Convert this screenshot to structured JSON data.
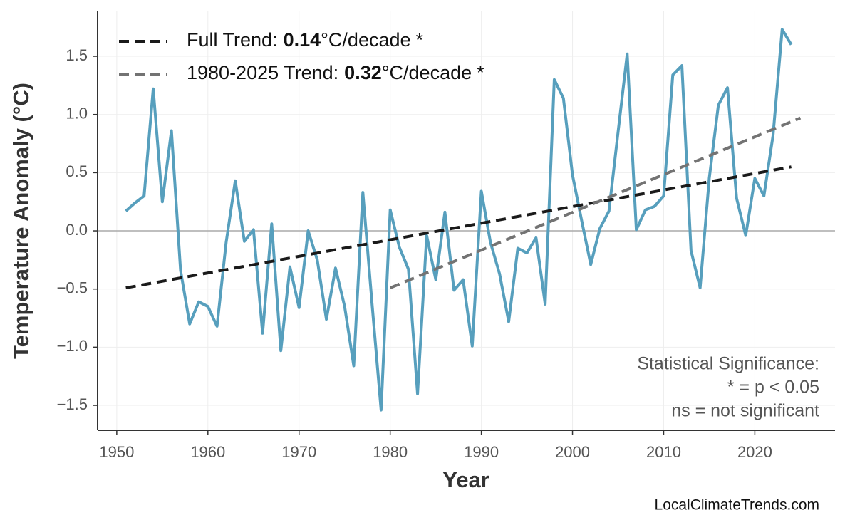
{
  "chart_data": {
    "type": "line",
    "xlabel": "Year",
    "ylabel": "Temperature Anomaly (°C)",
    "xlim": [
      1947.9,
      2028.8
    ],
    "ylim": [
      -1.714,
      1.892
    ],
    "xticks": [
      1950,
      1960,
      1970,
      1980,
      1990,
      2000,
      2010,
      2020
    ],
    "yticks": [
      {
        "value": -1.5,
        "label": "−1.5"
      },
      {
        "value": -1.0,
        "label": "−1.0"
      },
      {
        "value": -0.5,
        "label": "−0.5"
      },
      {
        "value": 0,
        "label": "0.0"
      },
      0.5,
      {
        "value": 1.0,
        "label": "1.0"
      },
      1.5
    ],
    "grid": true,
    "zero_line": true,
    "series": [
      {
        "color": "#579fbd",
        "x": [
          1951,
          1952,
          1953,
          1954,
          1955,
          1956,
          1957,
          1958,
          1959,
          1960,
          1961,
          1962,
          1963,
          1964,
          1965,
          1966,
          1967,
          1968,
          1969,
          1970,
          1971,
          1972,
          1973,
          1974,
          1975,
          1976,
          1977,
          1978,
          1979,
          1980,
          1981,
          1982,
          1983,
          1984,
          1985,
          1986,
          1987,
          1988,
          1989,
          1990,
          1991,
          1992,
          1993,
          1994,
          1995,
          1996,
          1997,
          1998,
          1999,
          2000,
          2001,
          2002,
          2003,
          2004,
          2005,
          2006,
          2007,
          2008,
          2009,
          2010,
          2011,
          2012,
          2013,
          2014,
          2015,
          2016,
          2017,
          2018,
          2019,
          2020,
          2021,
          2022,
          2023,
          2024
        ],
        "values": [
          0.17,
          0.24,
          0.3,
          1.22,
          0.25,
          0.86,
          -0.34,
          -0.8,
          -0.61,
          -0.65,
          -0.82,
          -0.1,
          0.43,
          -0.09,
          0.01,
          -0.88,
          0.06,
          -1.03,
          -0.31,
          -0.66,
          0.0,
          -0.25,
          -0.76,
          -0.32,
          -0.65,
          -1.16,
          0.33,
          -0.62,
          -1.54,
          0.18,
          -0.14,
          -0.33,
          -1.4,
          -0.04,
          -0.42,
          0.16,
          -0.51,
          -0.42,
          -0.99,
          0.34,
          -0.1,
          -0.37,
          -0.78,
          -0.15,
          -0.19,
          -0.06,
          -0.63,
          1.3,
          1.14,
          0.48,
          0.09,
          -0.29,
          0.02,
          0.17,
          0.85,
          1.52,
          0.01,
          0.18,
          0.21,
          0.3,
          1.34,
          1.42,
          -0.17,
          -0.49,
          0.45,
          1.08,
          1.23,
          0.28,
          -0.04,
          0.45,
          0.3,
          0.82,
          1.73,
          1.6
        ]
      },
      {
        "name": "Full Trend:",
        "slope": 0.14,
        "unit": "°C/decade",
        "significance": "*",
        "color": "#1a1a1a",
        "dash": true,
        "x": [
          1951,
          2024
        ],
        "values": [
          -0.49,
          0.55
        ]
      },
      {
        "name": "1980-2025 Trend:",
        "slope": 0.32,
        "unit": "°C/decade",
        "significance": "*",
        "color": "#737373",
        "dash": true,
        "x": [
          1980,
          2025
        ],
        "values": [
          -0.49,
          0.97
        ]
      }
    ],
    "annotations": [
      "Statistical Significance:",
      "* = p < 0.05",
      "ns = not significant"
    ],
    "source": "LocalClimateTrends.com"
  }
}
